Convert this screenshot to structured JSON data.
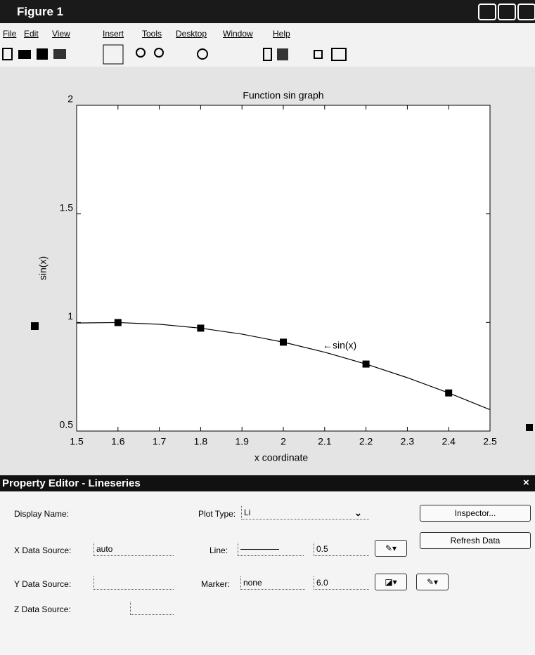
{
  "window": {
    "title": "Figure 1"
  },
  "menu": [
    "File",
    "Edit",
    "View",
    "Insert",
    "Tools",
    "Desktop",
    "Window",
    "Help"
  ],
  "plot": {
    "type": "line",
    "title": "Function sin graph",
    "x_label": "x coordinate",
    "y_label": "sin(x)",
    "annotation": "←sin(x)",
    "xlim": [
      1.5,
      2.5
    ],
    "ylim": [
      0.5,
      2
    ],
    "xticks": [
      1.5,
      1.6,
      1.7,
      1.8,
      1.9,
      2,
      2.1,
      2.2,
      2.3,
      2.4,
      2.5
    ],
    "yticks": [
      0.5,
      1,
      1.5,
      2
    ],
    "series": [
      {
        "name": "sin(x)",
        "color": "#000000",
        "marker": "none",
        "x": [
          1.5,
          1.6,
          1.7,
          1.8,
          1.9,
          2.0,
          2.1,
          2.2,
          2.3,
          2.4,
          2.5
        ],
        "values": [
          0.9975,
          0.9996,
          0.9917,
          0.9738,
          0.9463,
          0.9093,
          0.8632,
          0.8085,
          0.7457,
          0.6755,
          0.5985
        ]
      },
      {
        "color": "#000000",
        "marker": "square",
        "x": [
          1.6,
          1.8,
          2.0,
          2.2,
          2.4
        ],
        "values": [
          0.9996,
          0.9738,
          0.9093,
          0.8085,
          0.6755
        ]
      }
    ]
  },
  "property_editor": {
    "title": "Property Editor - Lineseries",
    "close": "×",
    "display_name_label": "Display Name:",
    "plot_type_label": "Plot Type:",
    "plot_type_value": "Li",
    "inspector_button": "Inspector...",
    "refresh_button": "Refresh Data",
    "x_source_label": "X Data Source:",
    "x_source_value": "auto",
    "line_label": "Line:",
    "line_width": "0.5",
    "y_source_label": "Y Data Source:",
    "marker_label": "Marker:",
    "marker_value": "none",
    "marker_size": "6.0",
    "z_source_label": "Z Data Source:"
  }
}
